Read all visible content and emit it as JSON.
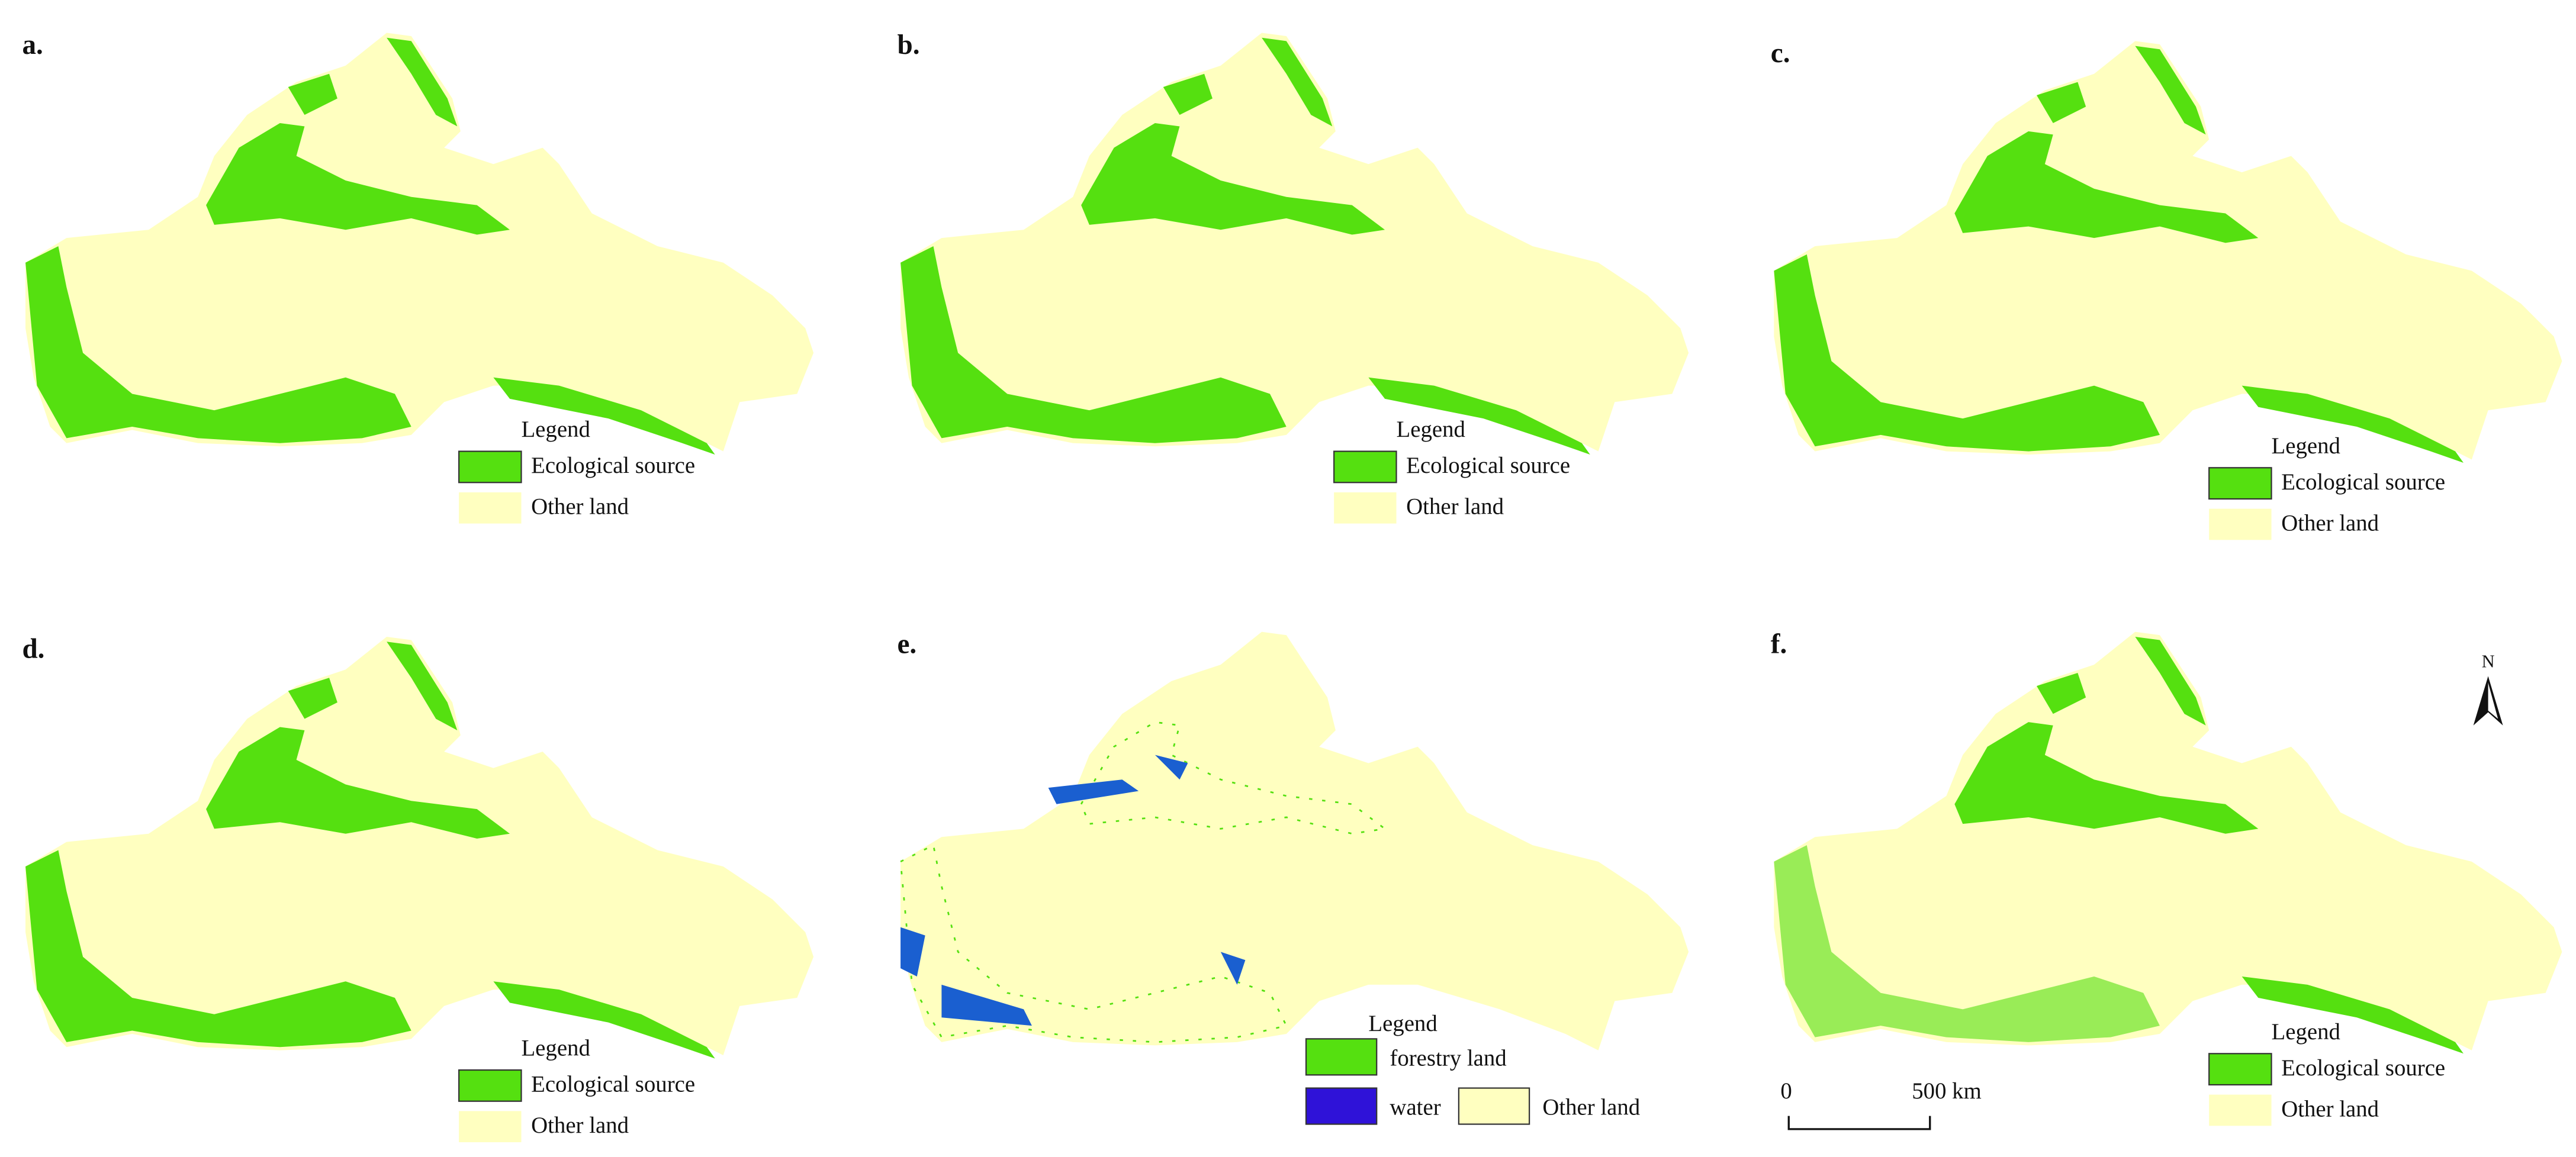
{
  "panels": [
    {
      "label": "a.",
      "legend": {
        "title": "Legend",
        "items": [
          "Ecological source",
          "Other land"
        ]
      }
    },
    {
      "label": "b.",
      "legend": {
        "title": "Legend",
        "items": [
          "Ecological source",
          "Other land"
        ]
      }
    },
    {
      "label": "c.",
      "legend": {
        "title": "Legend",
        "items": [
          "Ecological source",
          "Other land"
        ]
      }
    },
    {
      "label": "d.",
      "legend": {
        "title": "Legend",
        "items": [
          "Ecological source",
          "Other land"
        ]
      }
    },
    {
      "label": "e.",
      "legend": {
        "title": "Legend",
        "items": [
          "forestry land",
          "water",
          "Other land"
        ]
      }
    },
    {
      "label": "f.",
      "legend": {
        "title": "Legend",
        "items": [
          "Ecological source",
          "Other land"
        ]
      }
    }
  ],
  "scale_bar": {
    "start": "0",
    "end": "500 km"
  },
  "north": "N"
}
